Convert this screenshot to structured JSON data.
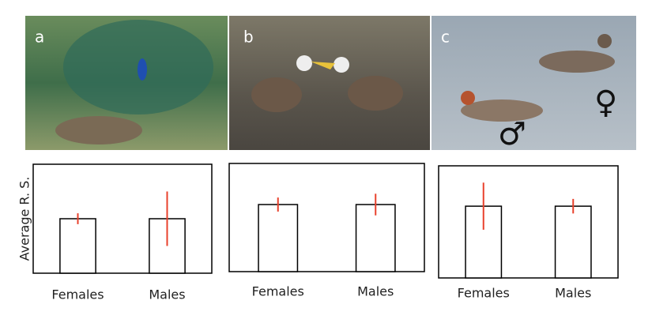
{
  "panels": [
    {
      "label": "a"
    },
    {
      "label": "b"
    },
    {
      "label": "c",
      "symbols": [
        "♂",
        "♀"
      ]
    }
  ],
  "chart_data": [
    {
      "type": "bar",
      "y_label": "Average R. S.",
      "categories": [
        "Females",
        "Males"
      ],
      "values": [
        0.5,
        0.5
      ],
      "errors": [
        0.05,
        0.25
      ],
      "ylim": [
        0,
        1
      ],
      "color": "#ffffff",
      "error_color": "#e8412c"
    },
    {
      "type": "bar",
      "categories": [
        "Females",
        "Males"
      ],
      "values": [
        0.62,
        0.62
      ],
      "errors": [
        0.065,
        0.1
      ],
      "ylim": [
        0,
        1
      ],
      "color": "#ffffff",
      "error_color": "#e8412c"
    },
    {
      "type": "bar",
      "categories": [
        "Females",
        "Males"
      ],
      "values": [
        0.64,
        0.64
      ],
      "errors": [
        0.21,
        0.065
      ],
      "ylim": [
        0,
        1
      ],
      "color": "#ffffff",
      "error_color": "#e8412c"
    }
  ]
}
